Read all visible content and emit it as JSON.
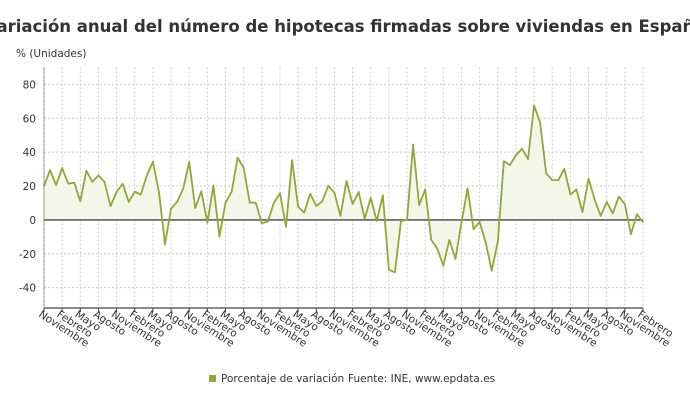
{
  "chart_data": {
    "type": "area",
    "title": "Variación anual del número de hipotecas firmadas sobre viviendas en España",
    "ylabel": "% (Unidades)",
    "xlabel": "",
    "ylim": [
      -52,
      90
    ],
    "yticks": [
      -40,
      -20,
      0,
      20,
      40,
      60,
      80
    ],
    "grid": true,
    "legend_position": "bottom",
    "colors": {
      "line": "#8fa83a",
      "fill": "#f4f6ea",
      "zero_line": "#444444",
      "grid": "#cccccc"
    },
    "xtick_labels": [
      "Noviembre",
      "Febrero",
      "Mayo",
      "Agosto",
      "Noviembre",
      "Febrero",
      "Mayo",
      "Agosto",
      "Noviembre",
      "Febrero",
      "Mayo",
      "Agosto",
      "Noviembre",
      "Febrero",
      "Mayo",
      "Agosto",
      "Noviembre",
      "Febrero",
      "Mayo",
      "Agosto",
      "Noviembre",
      "Febrero",
      "Mayo",
      "Agosto",
      "Noviembre",
      "Febrero",
      "Mayo",
      "Agosto",
      "Noviembre",
      "Febrero",
      "Mayo",
      "Agosto",
      "Noviembre",
      "Febrero"
    ],
    "series": [
      {
        "name": "Porcentaje de variación",
        "values": [
          20,
          29.4,
          20.6,
          30.6,
          21.4,
          22,
          11,
          29,
          22.5,
          26.3,
          22.5,
          8.2,
          16.5,
          21.4,
          10.6,
          16.7,
          15,
          26.3,
          34.3,
          16.5,
          -14.5,
          6.7,
          10.6,
          18.4,
          34.3,
          7,
          17,
          -1.6,
          20.2,
          -9.8,
          10.2,
          16.5,
          36.7,
          30.8,
          10.2,
          10.2,
          -2,
          -1,
          10.2,
          15.7,
          -4,
          35.3,
          7.8,
          4.3,
          15.5,
          8.2,
          11,
          20.2,
          16,
          2.4,
          23,
          9.4,
          16.5,
          0.8,
          13,
          -0.6,
          14.5,
          -29.4,
          -31,
          -0.6,
          0,
          44.5,
          8.8,
          18,
          -11.8,
          -16.9,
          -27,
          -11.8,
          -23,
          -1.6,
          18.6,
          -5.5,
          -1.2,
          -13.3,
          -30,
          -13,
          34.7,
          32.4,
          38.2,
          42,
          36,
          67.5,
          57.3,
          27.5,
          23.5,
          23.5,
          30.2,
          15,
          18,
          4.7,
          24.3,
          12.2,
          2.4,
          10.6,
          3.9,
          13.7,
          9.4,
          -8.4,
          3.3,
          -1.2
        ]
      }
    ],
    "source": "Fuente: INE, www.epdata.es"
  }
}
